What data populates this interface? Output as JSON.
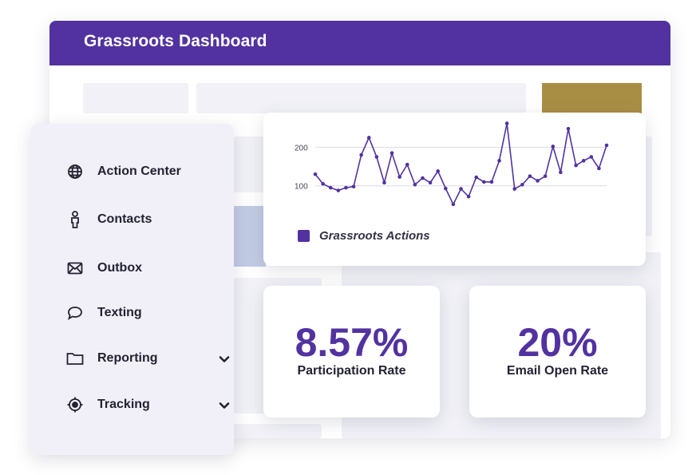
{
  "window": {
    "title": "Grassroots Dashboard"
  },
  "sidebar": {
    "items": [
      {
        "label": "Action Center",
        "icon": "globe-icon",
        "expandable": false
      },
      {
        "label": "Contacts",
        "icon": "person-icon",
        "expandable": false
      },
      {
        "label": "Outbox",
        "icon": "envelope-icon",
        "expandable": false
      },
      {
        "label": "Texting",
        "icon": "chat-bubble-icon",
        "expandable": false
      },
      {
        "label": "Reporting",
        "icon": "folder-icon",
        "expandable": true
      },
      {
        "label": "Tracking",
        "icon": "crosshair-icon",
        "expandable": true
      }
    ]
  },
  "chart_data": {
    "type": "line",
    "title": "",
    "xlabel": "",
    "ylabel": "",
    "yticks": [
      100,
      200
    ],
    "ylim": [
      0,
      290
    ],
    "legend": "bottom-left",
    "grid": true,
    "series": [
      {
        "name": "Grassroots Actions",
        "color": "#5232a0",
        "values": [
          130,
          105,
          95,
          88,
          95,
          98,
          180,
          225,
          175,
          108,
          185,
          123,
          155,
          103,
          120,
          108,
          138,
          93,
          52,
          92,
          72,
          122,
          110,
          110,
          165,
          262,
          92,
          103,
          125,
          113,
          125,
          202,
          135,
          248,
          153,
          165,
          175,
          145,
          205
        ]
      }
    ]
  },
  "stats": [
    {
      "value": "8.57%",
      "label": "Participation Rate"
    },
    {
      "value": "20%",
      "label": "Email Open Rate"
    }
  ],
  "colors": {
    "brand": "#5232a0",
    "accent_gold": "#a88e45",
    "panel": "#f1f0f8"
  }
}
